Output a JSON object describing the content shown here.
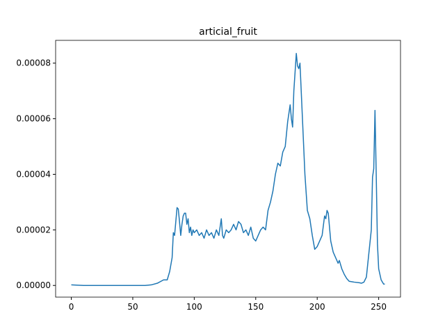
{
  "chart_data": {
    "type": "line",
    "title": "articial_fruit",
    "x": [
      0,
      10,
      60,
      65,
      70,
      75,
      78,
      80,
      82,
      83,
      84,
      85,
      86,
      87,
      88,
      89,
      90,
      91,
      92,
      93,
      94,
      95,
      96,
      97,
      98,
      99,
      100,
      102,
      104,
      106,
      108,
      110,
      112,
      114,
      116,
      118,
      120,
      122,
      123,
      124,
      126,
      128,
      130,
      132,
      134,
      136,
      138,
      140,
      142,
      144,
      146,
      148,
      150,
      152,
      154,
      156,
      158,
      160,
      162,
      164,
      166,
      168,
      170,
      172,
      174,
      176,
      178,
      179,
      180,
      181,
      183,
      184,
      185,
      186,
      188,
      190,
      192,
      194,
      196,
      198,
      200,
      202,
      204,
      206,
      207,
      208,
      209,
      211,
      213,
      215,
      217,
      218,
      220,
      222,
      224,
      226,
      230,
      234,
      236,
      238,
      240,
      244,
      245,
      246,
      247,
      248,
      249,
      250,
      252,
      254,
      255
    ],
    "series": [
      {
        "name": "articial_fruit",
        "color": "#1f77b4",
        "values": [
          2e-07,
          0,
          0,
          2e-07,
          8e-07,
          2e-06,
          2e-06,
          5e-06,
          1e-05,
          1.9e-05,
          1.8e-05,
          2.3e-05,
          2.8e-05,
          2.75e-05,
          2.3e-05,
          1.8e-05,
          2.2e-05,
          2.5e-05,
          2.6e-05,
          2.6e-05,
          2.2e-05,
          2.4e-05,
          1.9e-05,
          2.1e-05,
          1.8e-05,
          2e-05,
          1.9e-05,
          2e-05,
          1.8e-05,
          1.9e-05,
          1.7e-05,
          2e-05,
          1.8e-05,
          1.9e-05,
          1.7e-05,
          2e-05,
          1.8e-05,
          2.4e-05,
          1.8e-05,
          1.7e-05,
          2e-05,
          1.9e-05,
          2e-05,
          2.2e-05,
          2e-05,
          2.3e-05,
          2.2e-05,
          1.9e-05,
          2e-05,
          1.8e-05,
          2.1e-05,
          1.7e-05,
          1.6e-05,
          1.8e-05,
          2e-05,
          2.1e-05,
          2e-05,
          2.7e-05,
          3e-05,
          3.4e-05,
          4e-05,
          4.4e-05,
          4.3e-05,
          4.8e-05,
          5e-05,
          5.9e-05,
          6.5e-05,
          6e-05,
          5.7e-05,
          7e-05,
          8.35e-05,
          7.9e-05,
          7.8e-05,
          8e-05,
          6e-05,
          4e-05,
          2.7e-05,
          2.4e-05,
          1.8e-05,
          1.3e-05,
          1.4e-05,
          1.6e-05,
          1.8e-05,
          2.5e-05,
          2.4e-05,
          2.7e-05,
          2.6e-05,
          1.6e-05,
          1.2e-05,
          1e-05,
          8e-06,
          9e-06,
          6e-06,
          4e-06,
          2.5e-06,
          1.5e-06,
          1.2e-06,
          1e-06,
          8e-07,
          1.2e-06,
          3e-06,
          2e-05,
          3.9e-05,
          4.2e-05,
          6.3e-05,
          4e-05,
          1.5e-05,
          6e-06,
          2e-06,
          5e-07,
          5e-07
        ]
      }
    ],
    "xlim": [
      -12.75,
      267.75
    ],
    "xticks": [
      0,
      50,
      100,
      150,
      200,
      250
    ],
    "ylim": [
      -4.2e-06,
      8.82e-05
    ],
    "yticks": [
      {
        "value": 0,
        "label": "0.00000"
      },
      {
        "value": 2e-05,
        "label": "0.00002"
      },
      {
        "value": 4e-05,
        "label": "0.00004"
      },
      {
        "value": 6e-05,
        "label": "0.00006"
      },
      {
        "value": 8e-05,
        "label": "0.00008"
      }
    ]
  }
}
